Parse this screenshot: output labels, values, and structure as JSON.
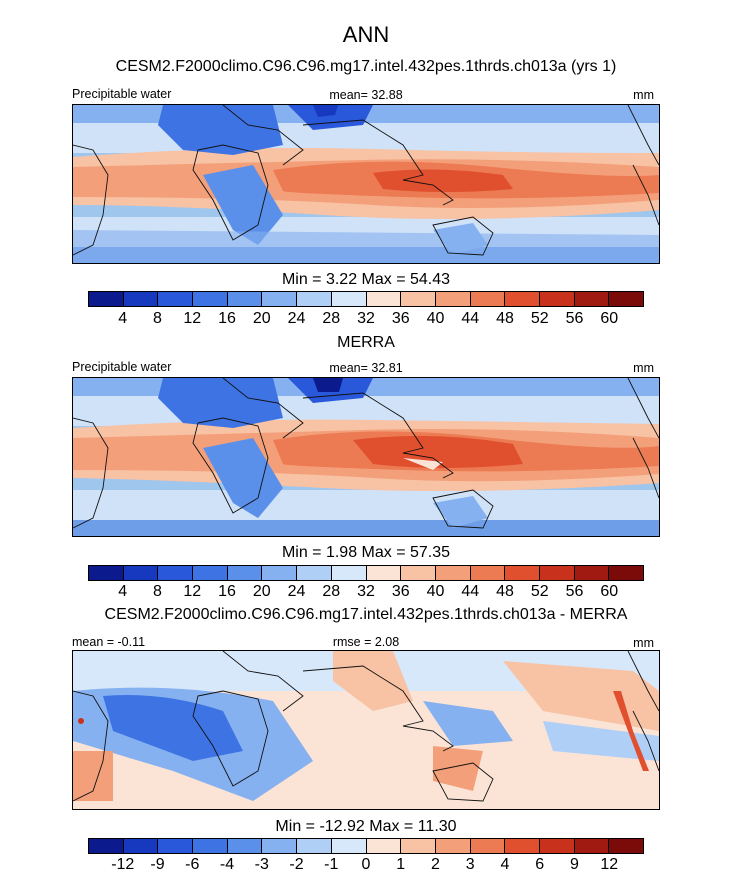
{
  "figure": {
    "title": "ANN"
  },
  "panels": [
    {
      "id": "model",
      "subtitle": "CESM2.F2000climo.C96.C96.mg17.intel.432pes.1thrds.ch013a (yrs 1)",
      "left_label": "Precipitable water",
      "center_label": "mean=  32.88",
      "right_label": "mm",
      "minmax": "Min =    3.22 Max =   54.43"
    },
    {
      "id": "merra",
      "subtitle": "MERRA",
      "left_label": "Precipitable water",
      "center_label": "mean=  32.81",
      "right_label": "mm",
      "minmax": "Min =    1.98 Max =   57.35"
    },
    {
      "id": "diff",
      "subtitle": "CESM2.F2000climo.C96.C96.mg17.intel.432pes.1thrds.ch013a - MERRA",
      "left_label": "mean =  -0.11",
      "center_label": "rmse =   2.08",
      "right_label": "mm",
      "minmax": "Min = -12.92 Max =  11.30"
    }
  ],
  "chart_data": [
    {
      "type": "heatmap",
      "title": "CESM2.F2000climo.C96.C96.mg17.intel.432pes.1thrds.ch013a (yrs 1)",
      "variable": "Precipitable water",
      "units": "mm",
      "mean": 32.88,
      "min": 3.22,
      "max": 54.43,
      "colorbar_levels": [
        4,
        8,
        12,
        16,
        20,
        24,
        28,
        32,
        36,
        40,
        44,
        48,
        52,
        56,
        60
      ],
      "colorbar_colors": [
        "#0b1a8c",
        "#1639c0",
        "#2a58db",
        "#3e73e4",
        "#5a8fea",
        "#86b1f0",
        "#b0cff6",
        "#d8e8fb",
        "#fbe4d6",
        "#f8c2a4",
        "#f3a07a",
        "#ec7a52",
        "#e04f2e",
        "#c8321c",
        "#a01a12",
        "#7a0b09"
      ]
    },
    {
      "type": "heatmap",
      "title": "MERRA",
      "variable": "Precipitable water",
      "units": "mm",
      "mean": 32.81,
      "min": 1.98,
      "max": 57.35,
      "colorbar_levels": [
        4,
        8,
        12,
        16,
        20,
        24,
        28,
        32,
        36,
        40,
        44,
        48,
        52,
        56,
        60
      ],
      "colorbar_colors": [
        "#0b1a8c",
        "#1639c0",
        "#2a58db",
        "#3e73e4",
        "#5a8fea",
        "#86b1f0",
        "#b0cff6",
        "#d8e8fb",
        "#fbe4d6",
        "#f8c2a4",
        "#f3a07a",
        "#ec7a52",
        "#e04f2e",
        "#c8321c",
        "#a01a12",
        "#7a0b09"
      ]
    },
    {
      "type": "heatmap",
      "title": "CESM2.F2000climo.C96.C96.mg17.intel.432pes.1thrds.ch013a - MERRA",
      "units": "mm",
      "mean": -0.11,
      "rmse": 2.08,
      "min": -12.92,
      "max": 11.3,
      "colorbar_levels": [
        -12,
        -9,
        -6,
        -4,
        -3,
        -2,
        -1,
        0,
        1,
        2,
        3,
        4,
        6,
        9,
        12
      ],
      "colorbar_colors": [
        "#0b1a8c",
        "#1639c0",
        "#2a58db",
        "#3e73e4",
        "#5a8fea",
        "#86b1f0",
        "#b0cff6",
        "#d8e8fb",
        "#fbe4d6",
        "#f8c2a4",
        "#f3a07a",
        "#ec7a52",
        "#e04f2e",
        "#c8321c",
        "#a01a12",
        "#7a0b09"
      ]
    }
  ]
}
